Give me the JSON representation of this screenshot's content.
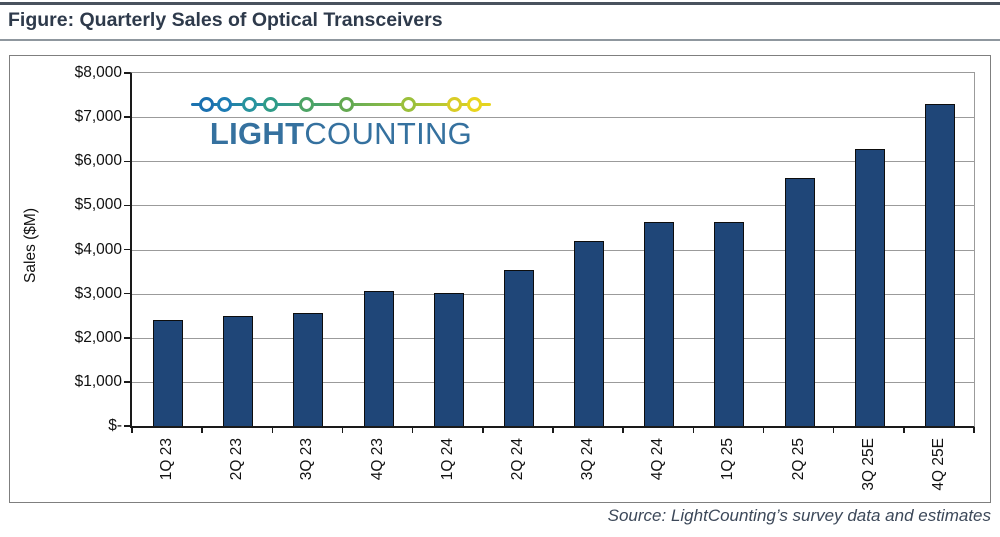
{
  "header": {
    "title": "Figure: Quarterly Sales of Optical Transceivers"
  },
  "logo": {
    "name": "LightCounting",
    "text_bold": "LIGHT",
    "text_regular": "COUNTING",
    "text_color": "#35719f",
    "dot_colors": [
      "#1a70b0",
      "#1d7cb4",
      "#28949e",
      "#2f9c88",
      "#4da465",
      "#64a951",
      "#9bc03b",
      "#d9cc27",
      "#e9d51e"
    ]
  },
  "chart_data": {
    "type": "bar",
    "title": "Quarterly Sales of Optical Transceivers",
    "categories": [
      "1Q 23",
      "2Q 23",
      "3Q 23",
      "4Q 23",
      "1Q 24",
      "2Q 24",
      "3Q 24",
      "4Q 24",
      "1Q 25",
      "2Q 25",
      "3Q 25E",
      "4Q 25E"
    ],
    "values": [
      2390,
      2470,
      2530,
      3040,
      3000,
      3520,
      4170,
      4600,
      4590,
      5590,
      6260,
      7280
    ],
    "xlabel": "",
    "ylabel": "Sales ($M)",
    "ylim": [
      0,
      8000
    ],
    "ytick_step": 1000,
    "ytick_labels": [
      "$-",
      "$1,000",
      "$2,000",
      "$3,000",
      "$4,000",
      "$5,000",
      "$6,000",
      "$7,000",
      "$8,000"
    ],
    "grid": true,
    "legend": "none",
    "bar_color": "#1f4678",
    "bar_border_color": "#0d0d0d",
    "gridline_color": "#9b9b9b"
  },
  "footer": {
    "source": "Source: LightCounting’s survey data and estimates"
  }
}
